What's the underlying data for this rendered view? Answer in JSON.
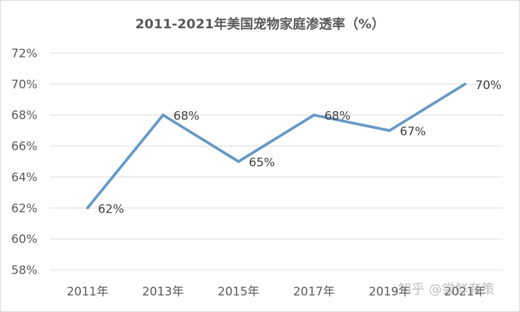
{
  "chart_data": {
    "type": "line",
    "title": "2011-2021年美国宠物家庭渗透率（%）",
    "categories": [
      "2011年",
      "2013年",
      "2015年",
      "2017年",
      "2019年",
      "2021年"
    ],
    "series": [
      {
        "values": [
          62,
          68,
          65,
          68,
          67,
          70
        ],
        "color": "#6699c7"
      }
    ],
    "data_labels": [
      "62%",
      "68%",
      "65%",
      "68%",
      "67%",
      "70%"
    ],
    "y_ticks": [
      "58%",
      "60%",
      "62%",
      "64%",
      "66%",
      "68%",
      "70%",
      "72%"
    ],
    "ylim": [
      58,
      72
    ],
    "ystep": 2,
    "grid": true,
    "legend": "none"
  },
  "watermark": "知乎 @尝鲜有策"
}
